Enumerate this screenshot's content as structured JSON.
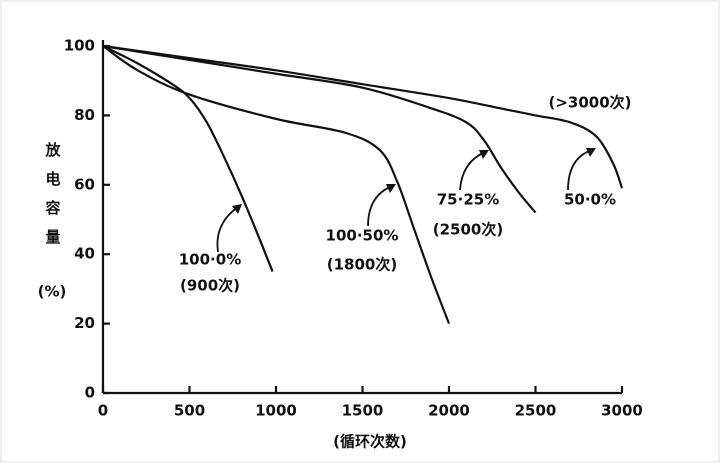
{
  "chart_data": {
    "type": "line",
    "xlabel": "(循环次数)",
    "ylabel": "放电容量",
    "yunit": "(%)",
    "xlim": [
      0,
      3000
    ],
    "xticks": [
      0,
      500,
      1000,
      1500,
      2000,
      2500,
      3000
    ],
    "ylim": [
      0,
      100
    ],
    "yticks": [
      0,
      20,
      40,
      60,
      80,
      100
    ],
    "color": "#111111",
    "series": [
      {
        "labels": [
          "100·0%",
          "(900次)"
        ],
        "x": [
          0,
          200,
          400,
          500,
          600,
          700,
          800,
          900,
          980
        ],
        "values": [
          100,
          95,
          89,
          85,
          78,
          68,
          57,
          45,
          35
        ]
      },
      {
        "labels": [
          "100·50%",
          "(1800次)"
        ],
        "x": [
          0,
          200,
          500,
          1000,
          1400,
          1600,
          1700,
          1800,
          1900,
          2000
        ],
        "values": [
          100,
          93,
          86,
          79,
          75,
          70,
          61,
          47,
          33,
          20
        ]
      },
      {
        "labels": [
          "75·25%",
          "(2500次)"
        ],
        "x": [
          0,
          500,
          1000,
          1500,
          1900,
          2100,
          2200,
          2300,
          2400,
          2500
        ],
        "values": [
          100,
          96,
          92,
          88,
          82,
          78,
          73,
          65,
          58,
          52
        ]
      },
      {
        "labels": [
          "(>3000次)",
          "50·0%"
        ],
        "x": [
          0,
          500,
          1000,
          1500,
          2000,
          2300,
          2500,
          2700,
          2850,
          2950,
          3000
        ],
        "values": [
          100,
          96.5,
          93,
          89,
          85,
          82,
          80,
          78,
          74,
          66,
          59
        ]
      }
    ]
  }
}
